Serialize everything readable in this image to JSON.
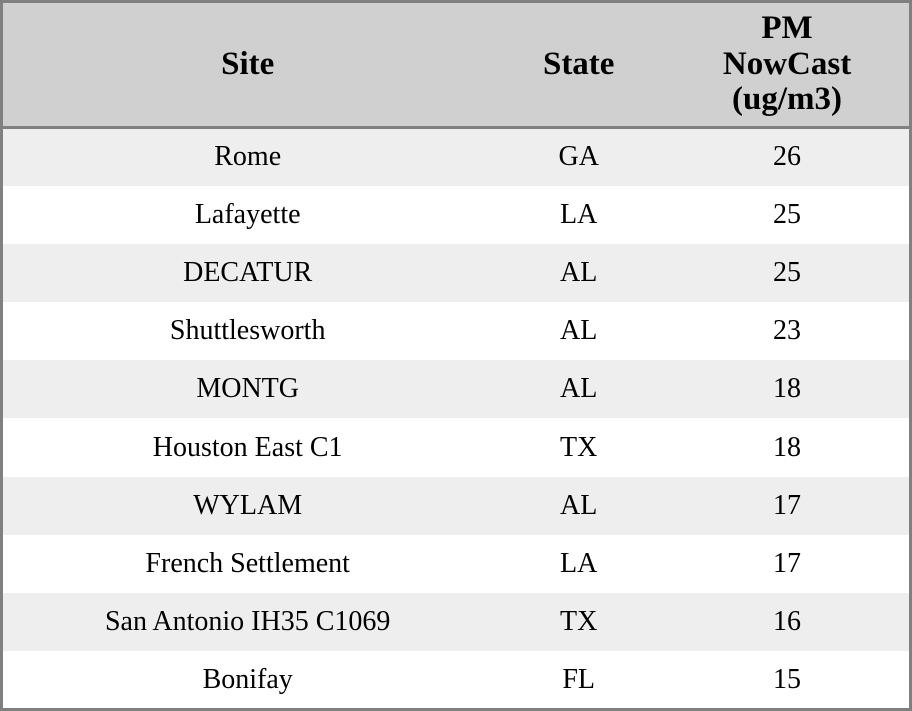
{
  "chart_data": {
    "type": "table",
    "columns": [
      "Site",
      "State",
      "PM NowCast (ug/m3)"
    ],
    "rows": [
      [
        "Rome",
        "GA",
        26
      ],
      [
        "Lafayette",
        "LA",
        25
      ],
      [
        "DECATUR",
        "AL",
        25
      ],
      [
        "Shuttlesworth",
        "AL",
        23
      ],
      [
        "MONTG",
        "AL",
        18
      ],
      [
        "Houston East C1",
        "TX",
        18
      ],
      [
        "WYLAM",
        "AL",
        17
      ],
      [
        "French Settlement",
        "LA",
        17
      ],
      [
        "San Antonio IH35 C1069",
        "TX",
        16
      ],
      [
        "Bonifay",
        "FL",
        15
      ]
    ],
    "layout": {
      "grid": false,
      "row_striping": true,
      "text_align": "center"
    }
  },
  "colors": {
    "header_bg": "#d0d0d0",
    "row_odd_bg": "#eeeeee",
    "row_even_bg": "#ffffff",
    "border": "#808080",
    "text": "#000000"
  }
}
